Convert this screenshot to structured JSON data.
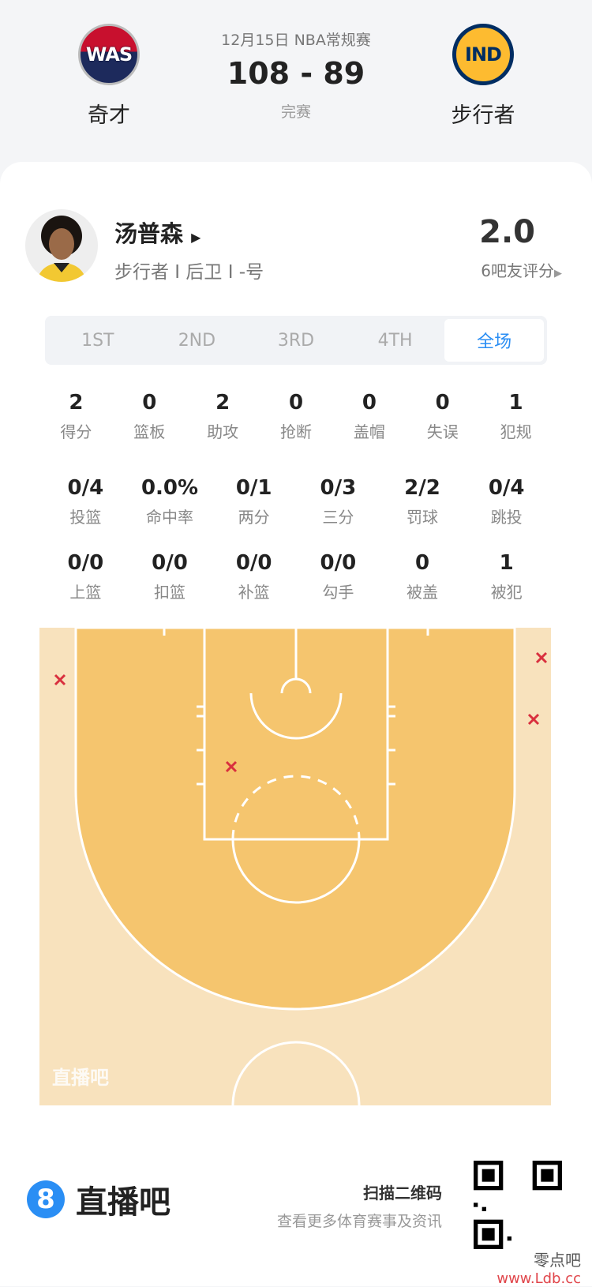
{
  "game": {
    "date_league": "12月15日 NBA常规赛",
    "score": "108 - 89",
    "status": "完赛",
    "home": {
      "abbr": "WAS",
      "name": "奇才"
    },
    "away": {
      "abbr": "IND",
      "name": "步行者"
    }
  },
  "player": {
    "name": "汤普森",
    "info": "步行者 I 后卫 I -号",
    "rating": "2.0",
    "rating_count": "6吧友评分"
  },
  "tabs": [
    {
      "label": "1ST"
    },
    {
      "label": "2ND"
    },
    {
      "label": "3RD"
    },
    {
      "label": "4TH"
    },
    {
      "label": "全场",
      "active": true
    }
  ],
  "stats_row1": [
    {
      "v": "2",
      "l": "得分"
    },
    {
      "v": "0",
      "l": "篮板"
    },
    {
      "v": "2",
      "l": "助攻"
    },
    {
      "v": "0",
      "l": "抢断"
    },
    {
      "v": "0",
      "l": "盖帽"
    },
    {
      "v": "0",
      "l": "失误"
    },
    {
      "v": "1",
      "l": "犯规"
    }
  ],
  "stats_row2": [
    {
      "v": "0/4",
      "l": "投篮"
    },
    {
      "v": "0.0%",
      "l": "命中率"
    },
    {
      "v": "0/1",
      "l": "两分"
    },
    {
      "v": "0/3",
      "l": "三分"
    },
    {
      "v": "2/2",
      "l": "罚球"
    },
    {
      "v": "0/4",
      "l": "跳投"
    }
  ],
  "stats_row3": [
    {
      "v": "0/0",
      "l": "上篮"
    },
    {
      "v": "0/0",
      "l": "扣篮"
    },
    {
      "v": "0/0",
      "l": "补篮"
    },
    {
      "v": "0/0",
      "l": "勾手"
    },
    {
      "v": "0",
      "l": "被盖"
    },
    {
      "v": "1",
      "l": "被犯"
    }
  ],
  "shot_chart": {
    "watermark": "直播吧",
    "miss_color": "#d9303e",
    "shots": [
      {
        "result": "miss",
        "type": "3PT",
        "side": "left-corner"
      },
      {
        "result": "miss",
        "type": "3PT",
        "side": "right-corner"
      },
      {
        "result": "miss",
        "type": "3PT",
        "side": "right-corner"
      },
      {
        "result": "miss",
        "type": "2PT",
        "side": "paint-left"
      }
    ]
  },
  "footer": {
    "brand_num": "8",
    "brand": "直播吧",
    "scan_title": "扫描二维码",
    "scan_sub": "查看更多体育赛事及资讯",
    "watermark_cn": "零点吧",
    "watermark_url": "www.Ldb.cc"
  },
  "colors": {
    "accent": "#2a8ef4",
    "court_inner": "#f5c56e",
    "court_outer": "#f8e2bd"
  }
}
